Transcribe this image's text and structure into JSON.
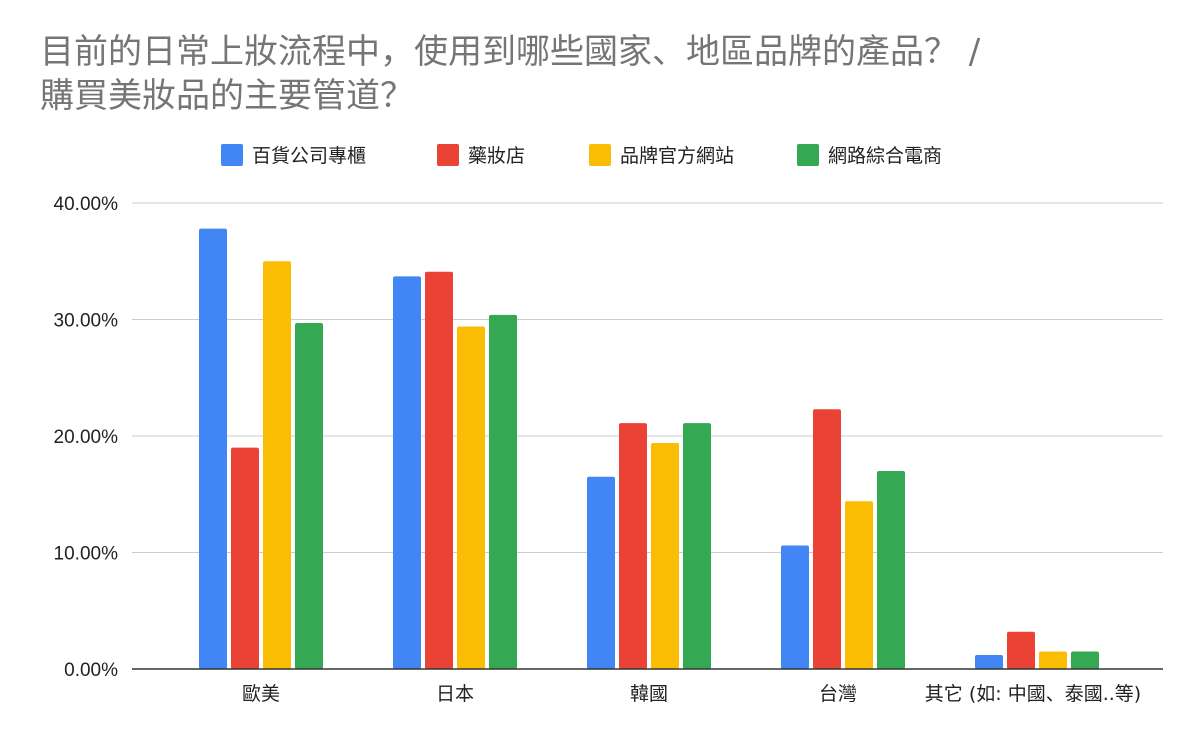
{
  "chart_data": {
    "type": "bar",
    "title_line1": "目前的日常上妝流程中，使用到哪些國家、地區品牌的產品？ /",
    "title_line2": "購買美妝品的主要管道？",
    "categories": [
      "歐美",
      "日本",
      "韓國",
      "台灣",
      "其它 (如: 中國、泰國..等)"
    ],
    "series": [
      {
        "name": "百貨公司專櫃",
        "color": "#4285f4",
        "values": [
          0.378,
          0.337,
          0.165,
          0.106,
          0.012
        ]
      },
      {
        "name": "藥妝店",
        "color": "#ea4335",
        "values": [
          0.19,
          0.341,
          0.211,
          0.223,
          0.032
        ]
      },
      {
        "name": "品牌官方網站",
        "color": "#fbbc04",
        "values": [
          0.35,
          0.294,
          0.194,
          0.144,
          0.015
        ]
      },
      {
        "name": "網路綜合電商",
        "color": "#34a853",
        "values": [
          0.297,
          0.304,
          0.211,
          0.17,
          0.015
        ]
      }
    ],
    "ylim": [
      0,
      0.4
    ],
    "yticks": [
      "0.00%",
      "10.00%",
      "20.00%",
      "30.00%",
      "40.00%"
    ],
    "legend_position": "top",
    "grid": true
  }
}
